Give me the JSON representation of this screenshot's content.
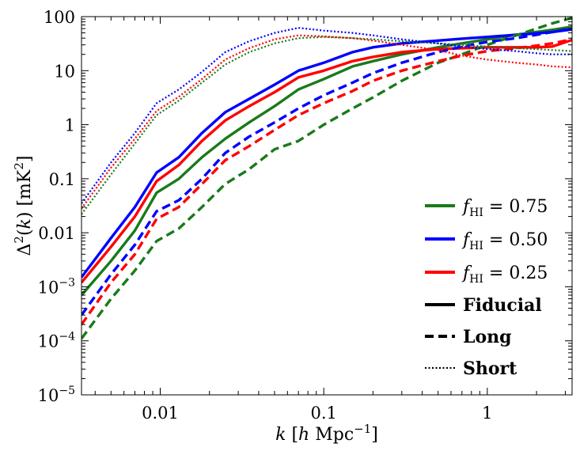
{
  "chart_data": {
    "type": "line",
    "xscale": "log",
    "yscale": "log",
    "xlim": [
      0.0033,
      3.3
    ],
    "ylim": [
      1e-05,
      100
    ],
    "xlabel": "k [h Mpc⁻¹]",
    "ylabel": "Δ²(k) [mK²]",
    "x_ticks": [
      {
        "value": 0.01,
        "label": "0.01"
      },
      {
        "value": 0.1,
        "label": "0.1"
      },
      {
        "value": 1,
        "label": "1"
      }
    ],
    "y_ticks": [
      {
        "value": 1e-05,
        "base": "10",
        "exp": "−5"
      },
      {
        "value": 0.0001,
        "base": "10",
        "exp": "−4"
      },
      {
        "value": 0.001,
        "base": "10",
        "exp": "−3"
      },
      {
        "value": 0.01,
        "label": "0.01"
      },
      {
        "value": 0.1,
        "label": "0.1"
      },
      {
        "value": 1,
        "label": "1"
      },
      {
        "value": 10,
        "label": "10"
      },
      {
        "value": 100,
        "label": "100"
      }
    ],
    "legend": {
      "position": "lower-right",
      "color_entries": [
        {
          "f_label": "f",
          "sub": "HI",
          "value_text": " = 0.75",
          "color": "#1a7a1a"
        },
        {
          "f_label": "f",
          "sub": "HI",
          "value_text": " = 0.50",
          "color": "#0000ff"
        },
        {
          "f_label": "f",
          "sub": "HI",
          "value_text": " = 0.25",
          "color": "#ff0000"
        }
      ],
      "style_entries": [
        {
          "label": "Fiducial",
          "dash": "solid"
        },
        {
          "label": "Long",
          "dash": "dashed"
        },
        {
          "label": "Short",
          "dash": "dotted"
        }
      ]
    },
    "series": [
      {
        "name": "Fiducial f_HI = 0.75",
        "color": "#1a7a1a",
        "dash": "solid",
        "x": [
          0.0033,
          0.005,
          0.007,
          0.0095,
          0.013,
          0.018,
          0.025,
          0.035,
          0.05,
          0.07,
          0.1,
          0.15,
          0.2,
          0.3,
          0.5,
          0.7,
          1.0,
          1.5,
          2.0,
          2.5,
          3.3
        ],
        "y": [
          0.0007,
          0.003,
          0.011,
          0.055,
          0.1,
          0.25,
          0.55,
          1.1,
          2.2,
          4.5,
          7,
          12,
          15,
          20,
          27,
          32,
          38,
          46,
          52,
          57,
          65
        ]
      },
      {
        "name": "Fiducial f_HI = 0.50",
        "color": "#0000ff",
        "dash": "solid",
        "x": [
          0.0033,
          0.005,
          0.007,
          0.0095,
          0.013,
          0.018,
          0.025,
          0.035,
          0.05,
          0.07,
          0.1,
          0.15,
          0.2,
          0.3,
          0.5,
          0.7,
          1.0,
          1.5,
          2.0,
          2.5,
          3.3
        ],
        "y": [
          0.0015,
          0.008,
          0.03,
          0.13,
          0.25,
          0.7,
          1.7,
          3.0,
          5.5,
          10,
          14,
          22,
          27,
          32,
          36,
          39,
          42,
          46,
          49,
          52,
          58
        ]
      },
      {
        "name": "Fiducial f_HI = 0.25",
        "color": "#ff0000",
        "dash": "solid",
        "x": [
          0.0033,
          0.005,
          0.007,
          0.0095,
          0.013,
          0.018,
          0.025,
          0.035,
          0.05,
          0.07,
          0.1,
          0.15,
          0.2,
          0.3,
          0.5,
          0.7,
          1.0,
          1.5,
          2.0,
          2.5,
          3.3
        ],
        "y": [
          0.0012,
          0.0055,
          0.02,
          0.09,
          0.18,
          0.5,
          1.2,
          2.2,
          4.0,
          7.5,
          10,
          15,
          18,
          22,
          25,
          26,
          27,
          27,
          27,
          28,
          37
        ]
      },
      {
        "name": "Long f_HI = 0.75",
        "color": "#1a7a1a",
        "dash": "dashed",
        "x": [
          0.0033,
          0.005,
          0.007,
          0.0095,
          0.013,
          0.018,
          0.025,
          0.035,
          0.05,
          0.07,
          0.1,
          0.15,
          0.2,
          0.3,
          0.5,
          0.7,
          1.0,
          1.5,
          2.0,
          2.5,
          3.3
        ],
        "y": [
          0.00011,
          0.0006,
          0.002,
          0.007,
          0.012,
          0.03,
          0.08,
          0.15,
          0.35,
          0.5,
          1.0,
          2.0,
          3.2,
          6.5,
          14,
          20,
          30,
          45,
          60,
          75,
          95
        ]
      },
      {
        "name": "Long f_HI = 0.50",
        "color": "#0000ff",
        "dash": "dashed",
        "x": [
          0.0033,
          0.005,
          0.007,
          0.0095,
          0.013,
          0.018,
          0.025,
          0.035,
          0.05,
          0.07,
          0.1,
          0.15,
          0.2,
          0.3,
          0.5,
          0.7,
          1.0,
          1.5,
          2.0,
          2.5,
          3.3
        ],
        "y": [
          0.0003,
          0.0017,
          0.006,
          0.025,
          0.04,
          0.1,
          0.3,
          0.6,
          1.1,
          2.0,
          3.5,
          6.0,
          9.0,
          14,
          22,
          28,
          34,
          40,
          46,
          52,
          60
        ]
      },
      {
        "name": "Long f_HI = 0.25",
        "color": "#ff0000",
        "dash": "dashed",
        "x": [
          0.0033,
          0.005,
          0.007,
          0.0095,
          0.013,
          0.018,
          0.025,
          0.035,
          0.05,
          0.07,
          0.1,
          0.15,
          0.2,
          0.3,
          0.5,
          0.7,
          1.0,
          1.5,
          2.0,
          2.5,
          3.3
        ],
        "y": [
          0.0002,
          0.0012,
          0.004,
          0.018,
          0.03,
          0.08,
          0.22,
          0.4,
          0.8,
          1.5,
          2.5,
          4.2,
          6.5,
          10,
          15,
          19,
          23,
          26,
          29,
          32,
          38
        ]
      },
      {
        "name": "Short f_HI = 0.75",
        "color": "#1a7a1a",
        "dash": "dotted",
        "x": [
          0.0033,
          0.005,
          0.007,
          0.0095,
          0.013,
          0.018,
          0.025,
          0.035,
          0.05,
          0.07,
          0.1,
          0.15,
          0.2,
          0.3,
          0.5,
          0.7,
          1.0,
          1.5,
          2.0,
          2.5,
          3.3
        ],
        "y": [
          0.022,
          0.12,
          0.45,
          1.5,
          2.8,
          6.0,
          13,
          22,
          32,
          40,
          42,
          40,
          38,
          35,
          32,
          30,
          28,
          26,
          25,
          24,
          23
        ]
      },
      {
        "name": "Short f_HI = 0.50",
        "color": "#0000ff",
        "dash": "dotted",
        "x": [
          0.0033,
          0.005,
          0.007,
          0.0095,
          0.013,
          0.018,
          0.025,
          0.035,
          0.05,
          0.07,
          0.1,
          0.15,
          0.2,
          0.3,
          0.5,
          0.7,
          1.0,
          1.5,
          2.0,
          2.5,
          3.3
        ],
        "y": [
          0.035,
          0.2,
          0.7,
          2.5,
          4.5,
          9.5,
          22,
          35,
          50,
          62,
          55,
          50,
          45,
          38,
          32,
          28,
          25,
          23,
          21,
          20,
          20
        ]
      },
      {
        "name": "Short f_HI = 0.25",
        "color": "#ff0000",
        "dash": "dotted",
        "x": [
          0.0033,
          0.005,
          0.007,
          0.0095,
          0.013,
          0.018,
          0.025,
          0.035,
          0.05,
          0.07,
          0.1,
          0.15,
          0.2,
          0.3,
          0.5,
          0.7,
          1.0,
          1.5,
          2.0,
          2.5,
          3.3
        ],
        "y": [
          0.028,
          0.16,
          0.55,
          1.8,
          3.3,
          7.0,
          16,
          26,
          38,
          45,
          43,
          40,
          36,
          30,
          24,
          19,
          16,
          14,
          13,
          12,
          11.5
        ]
      }
    ]
  }
}
